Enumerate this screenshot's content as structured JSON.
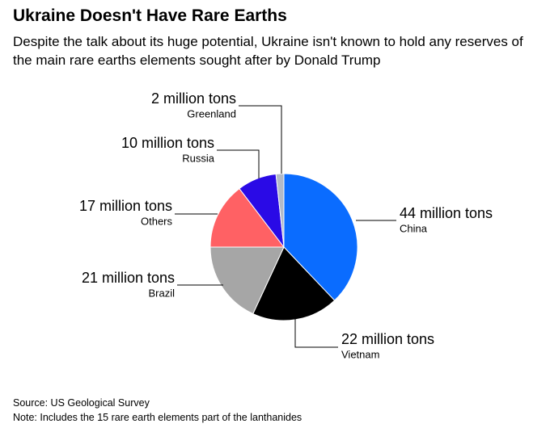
{
  "chart_data": {
    "type": "pie",
    "title": "Ukraine Doesn't Have Rare Earths",
    "subtitle": "Despite the talk about its huge potential, Ukraine isn't known to hold any reserves of the main rare earths elements sought after by Donald Trump",
    "categories": [
      "China",
      "Vietnam",
      "Brazil",
      "Others",
      "Russia",
      "Greenland"
    ],
    "values": [
      44,
      22,
      21,
      17,
      10,
      2
    ],
    "value_labels": [
      "44 million tons",
      "22 million tons",
      "21 million tons",
      "17 million tons",
      "10 million tons",
      "2 million tons"
    ],
    "colors": [
      "#0a6cff",
      "#000000",
      "#a6a6a6",
      "#ff6164",
      "#2a0ae6",
      "#b3bac7"
    ],
    "source": "Source: US Geological Survey",
    "note": "Note: Includes the 15 rare earth elements part of the lanthanides"
  }
}
